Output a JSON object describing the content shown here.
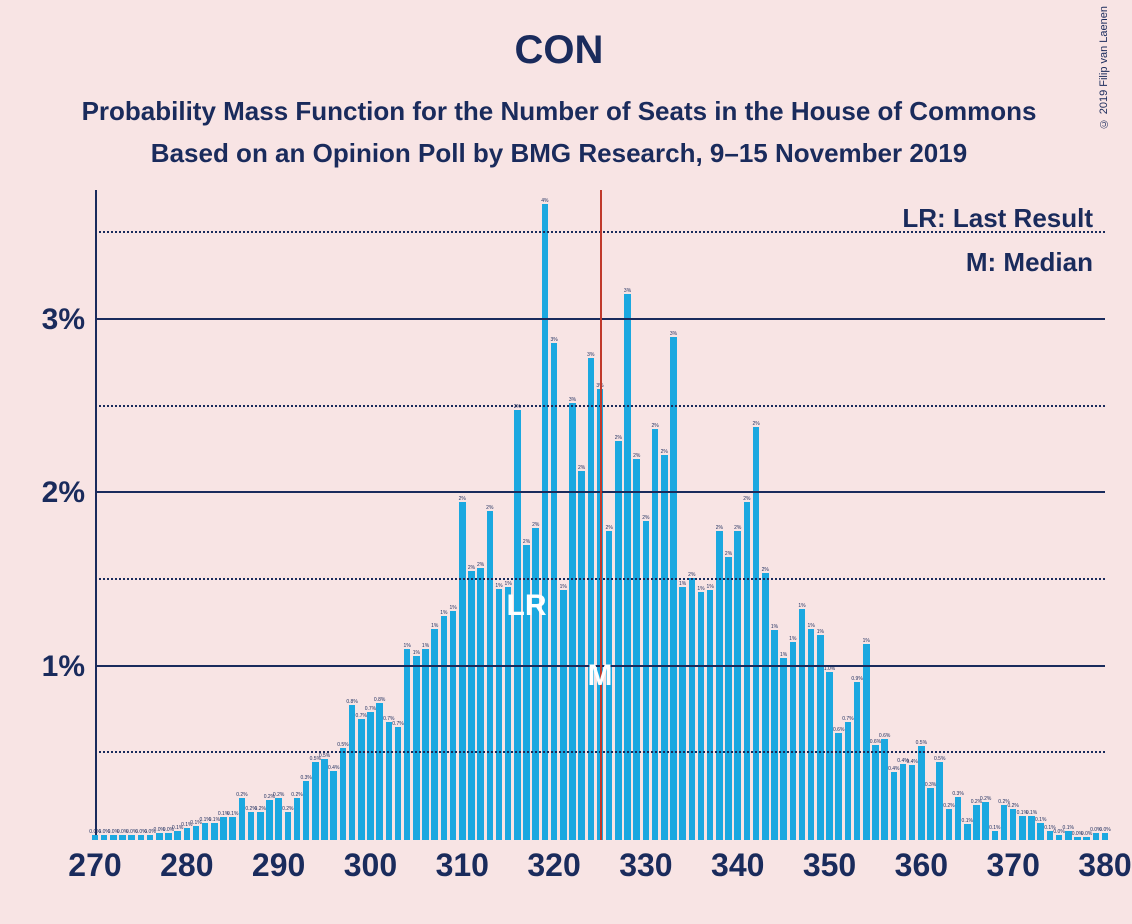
{
  "title": "CON",
  "subtitle_line1": "Probability Mass Function for the Number of Seats in the House of Commons",
  "subtitle_line2": "Based on an Opinion Poll by BMG Research, 9–15 November 2019",
  "copyright": "© 2019 Filip van Laenen",
  "legend": {
    "lr": "LR: Last Result",
    "m": "M: Median"
  },
  "annotations": {
    "lr": "LR",
    "m": "M",
    "lr_x": 317,
    "m_x": 325
  },
  "chart": {
    "type": "bar",
    "bar_color": "#1ba8e0",
    "median_color": "#c0392b",
    "axis_color": "#1a2b5c",
    "background_color": "#f8e4e4",
    "grid_solid": "#1a2b5c",
    "grid_dotted": "#1a2b5c",
    "text_color": "#1a2b5c",
    "title_fontsize": 40,
    "subtitle_fontsize": 26,
    "tick_fontsize": 30,
    "legend_fontsize": 26,
    "xlim": [
      270,
      380
    ],
    "ylim": [
      0,
      3.75
    ],
    "x_ticks": [
      270,
      280,
      290,
      300,
      310,
      320,
      330,
      340,
      350,
      360,
      370,
      380
    ],
    "y_ticks_major": [
      1,
      2,
      3
    ],
    "y_ticks_minor": [
      0.5,
      1.5,
      2.5,
      3.5
    ],
    "bar_width_ratio": 0.72,
    "median_x": 325,
    "x_start": 270,
    "values": [
      0.03,
      0.03,
      0.03,
      0.03,
      0.03,
      0.03,
      0.03,
      0.04,
      0.04,
      0.05,
      0.07,
      0.08,
      0.1,
      0.1,
      0.13,
      0.13,
      0.24,
      0.16,
      0.16,
      0.23,
      0.24,
      0.16,
      0.24,
      0.34,
      0.45,
      0.47,
      0.4,
      0.53,
      0.78,
      0.7,
      0.74,
      0.79,
      0.68,
      0.65,
      1.1,
      1.06,
      1.1,
      1.22,
      1.29,
      1.32,
      1.95,
      1.55,
      1.57,
      1.9,
      1.45,
      1.46,
      2.48,
      1.7,
      1.8,
      3.67,
      2.87,
      1.44,
      2.52,
      2.13,
      2.78,
      2.6,
      1.78,
      2.3,
      3.15,
      2.2,
      1.84,
      2.37,
      2.22,
      2.9,
      1.46,
      1.51,
      1.43,
      1.44,
      1.78,
      1.63,
      1.78,
      1.95,
      2.38,
      1.54,
      1.21,
      1.05,
      1.14,
      1.33,
      1.22,
      1.18,
      0.97,
      0.62,
      0.68,
      0.91,
      1.13,
      0.55,
      0.58,
      0.39,
      0.44,
      0.43,
      0.54,
      0.3,
      0.45,
      0.18,
      0.25,
      0.09,
      0.2,
      0.22,
      0.05,
      0.2,
      0.18,
      0.14,
      0.14,
      0.1,
      0.05,
      0.03,
      0.05,
      0.02,
      0.02,
      0.04,
      0.04
    ]
  }
}
